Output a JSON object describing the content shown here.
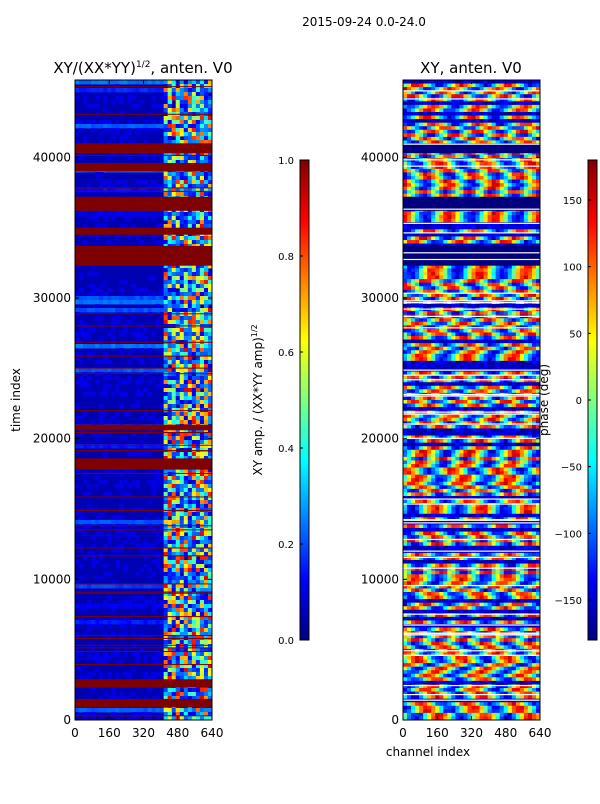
{
  "figure": {
    "suptitle": "2015-09-24 0.0-24.0",
    "colors": {
      "background": "#ffffff",
      "flag_red": "#7f0000",
      "deep_blue": "#00007f"
    }
  },
  "chart_data": [
    {
      "type": "heatmap",
      "title_main": "XY/(XX*YY)",
      "title_exp": "1/2",
      "title_suffix": ", anten. V0",
      "xlabel": "",
      "ylabel": "time index",
      "xlim": [
        0,
        640
      ],
      "ylim": [
        0,
        45500
      ],
      "xticks": [
        0,
        160,
        320,
        480,
        640
      ],
      "yticks": [
        0,
        10000,
        20000,
        30000,
        40000
      ],
      "colormap": "jet",
      "colorbar": {
        "label_main": "XY amp. / (XX*YY amp)",
        "label_exp": "1/2",
        "range": [
          0.0,
          1.0
        ],
        "ticks": [
          "0.0",
          "0.2",
          "0.4",
          "0.6",
          "0.8",
          "1.0"
        ]
      },
      "flagged_time_ranges": [
        [
          1000,
          1500
        ],
        [
          2300,
          2900
        ],
        [
          17800,
          18600
        ],
        [
          20600,
          21000
        ],
        [
          32300,
          33700
        ],
        [
          34500,
          35000
        ],
        [
          36200,
          37200
        ],
        [
          39000,
          39600
        ],
        [
          40300,
          41000
        ]
      ],
      "high_amplitude_channel_range": [
        400,
        640
      ],
      "background_level": 0.05
    },
    {
      "type": "heatmap",
      "title_main": "XY, anten. V0",
      "xlabel": "channel index",
      "ylabel": "",
      "xlim": [
        0,
        640
      ],
      "ylim": [
        0,
        45500
      ],
      "xticks": [
        0,
        160,
        320,
        480,
        640
      ],
      "yticks": [
        0,
        10000,
        20000,
        30000,
        40000
      ],
      "colormap": "jet",
      "colorbar": {
        "label_main": "phase (deg)",
        "range": [
          -180,
          180
        ],
        "ticks": [
          "150",
          "100",
          "50",
          "0",
          "−50",
          "−100",
          "−150"
        ]
      },
      "flagged_time_ranges": [
        [
          32300,
          33700
        ],
        [
          36200,
          37200
        ],
        [
          40300,
          41000
        ]
      ]
    }
  ]
}
